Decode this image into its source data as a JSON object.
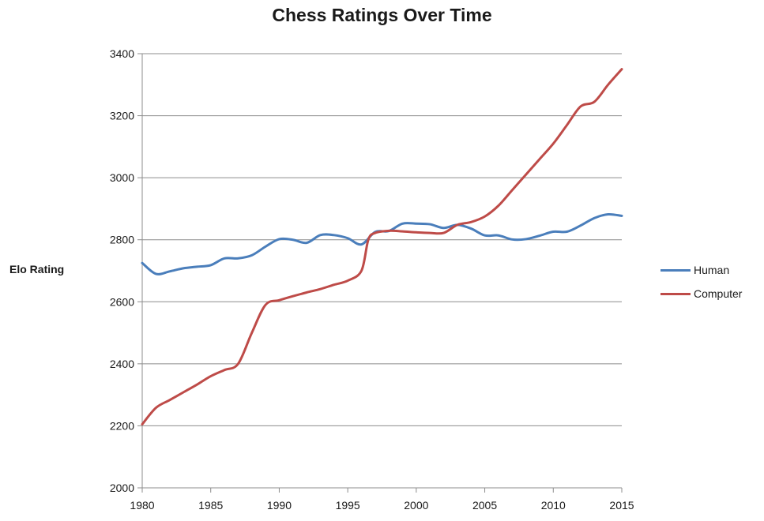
{
  "chart_data": {
    "type": "line",
    "title": "Chess Ratings Over Time",
    "xlabel": "",
    "ylabel": "Elo Rating",
    "xlim": [
      1980,
      2015
    ],
    "ylim": [
      2000,
      3400
    ],
    "x_ticks": [
      1980,
      1985,
      1990,
      1995,
      2000,
      2005,
      2010,
      2015
    ],
    "y_ticks": [
      2000,
      2200,
      2400,
      2600,
      2800,
      3000,
      3200,
      3400
    ],
    "grid": "horizontal",
    "legend_position": "right",
    "series": [
      {
        "name": "Human",
        "color": "#4a7ebb",
        "x": [
          1980,
          1981,
          1982,
          1983,
          1984,
          1985,
          1986,
          1987,
          1988,
          1989,
          1990,
          1991,
          1992,
          1993,
          1994,
          1995,
          1996,
          1997,
          1998,
          1999,
          2000,
          2001,
          2002,
          2003,
          2004,
          2005,
          2006,
          2007,
          2008,
          2009,
          2010,
          2011,
          2012,
          2013,
          2014,
          2015
        ],
        "values": [
          2725,
          2690,
          2698,
          2708,
          2713,
          2718,
          2740,
          2740,
          2750,
          2778,
          2802,
          2800,
          2790,
          2815,
          2815,
          2805,
          2785,
          2825,
          2828,
          2852,
          2852,
          2850,
          2838,
          2848,
          2836,
          2814,
          2814,
          2801,
          2802,
          2813,
          2826,
          2826,
          2846,
          2870,
          2882,
          2877
        ]
      },
      {
        "name": "Computer",
        "color": "#be4b48",
        "x": [
          1980,
          1981,
          1982,
          1983,
          1984,
          1985,
          1986,
          1987,
          1988,
          1989,
          1990,
          1991,
          1992,
          1993,
          1994,
          1995,
          1996,
          1996.5,
          1997,
          1998,
          1999,
          2000,
          2001,
          2002,
          2003,
          2004,
          2005,
          2006,
          2007,
          2008,
          2009,
          2010,
          2011,
          2012,
          2013,
          2014,
          2015
        ],
        "values": [
          2205,
          2258,
          2283,
          2308,
          2333,
          2360,
          2380,
          2400,
          2500,
          2590,
          2605,
          2618,
          2630,
          2641,
          2655,
          2668,
          2700,
          2800,
          2822,
          2829,
          2827,
          2824,
          2822,
          2822,
          2848,
          2857,
          2875,
          2910,
          2960,
          3010,
          3060,
          3110,
          3170,
          3230,
          3245,
          3300,
          3350
        ]
      }
    ]
  }
}
